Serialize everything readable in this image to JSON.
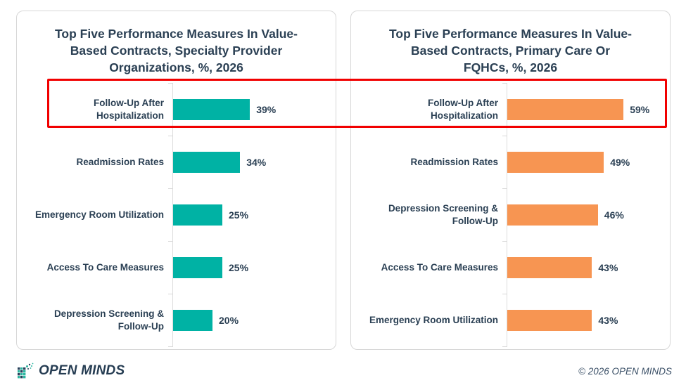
{
  "chart_data": [
    {
      "type": "bar",
      "orientation": "horizontal",
      "title": "Top Five Performance Measures In Value-Based Contracts, Specialty Provider Organizations, %, 2026",
      "categories": [
        "Follow-Up After Hospitalization",
        "Readmission Rates",
        "Emergency Room Utilization",
        "Access To Care Measures",
        "Depression Screening & Follow-Up"
      ],
      "values": [
        39,
        34,
        25,
        25,
        20
      ],
      "value_labels": [
        "39%",
        "34%",
        "25%",
        "25%",
        "20%"
      ],
      "unit": "%",
      "bar_color": "#00b2a4",
      "value_axis_labels_shown": false,
      "grid": false,
      "legend": false
    },
    {
      "type": "bar",
      "orientation": "horizontal",
      "title": "Top Five Performance Measures In Value-Based Contracts, Primary Care Or FQHCs, %, 2026",
      "categories": [
        "Follow-Up After Hospitalization",
        "Readmission Rates",
        "Depression Screening & Follow-Up",
        "Access To Care Measures",
        "Emergency Room Utilization"
      ],
      "values": [
        59,
        49,
        46,
        43,
        43
      ],
      "value_labels": [
        "59%",
        "49%",
        "46%",
        "43%",
        "43%"
      ],
      "unit": "%",
      "bar_color": "#f79552",
      "value_axis_labels_shown": false,
      "grid": false,
      "legend": false
    }
  ],
  "highlight": {
    "highlighted_category": "Follow-Up After Hospitalization",
    "color": "#f10000"
  },
  "footer": {
    "logo_text": "OPEN MINDS",
    "copyright": "© 2026 OPEN MINDS"
  },
  "colors": {
    "text_navy": "#2b4054",
    "teal": "#00b2a4",
    "orange": "#f79552",
    "panel_border": "#d7d7d7"
  }
}
